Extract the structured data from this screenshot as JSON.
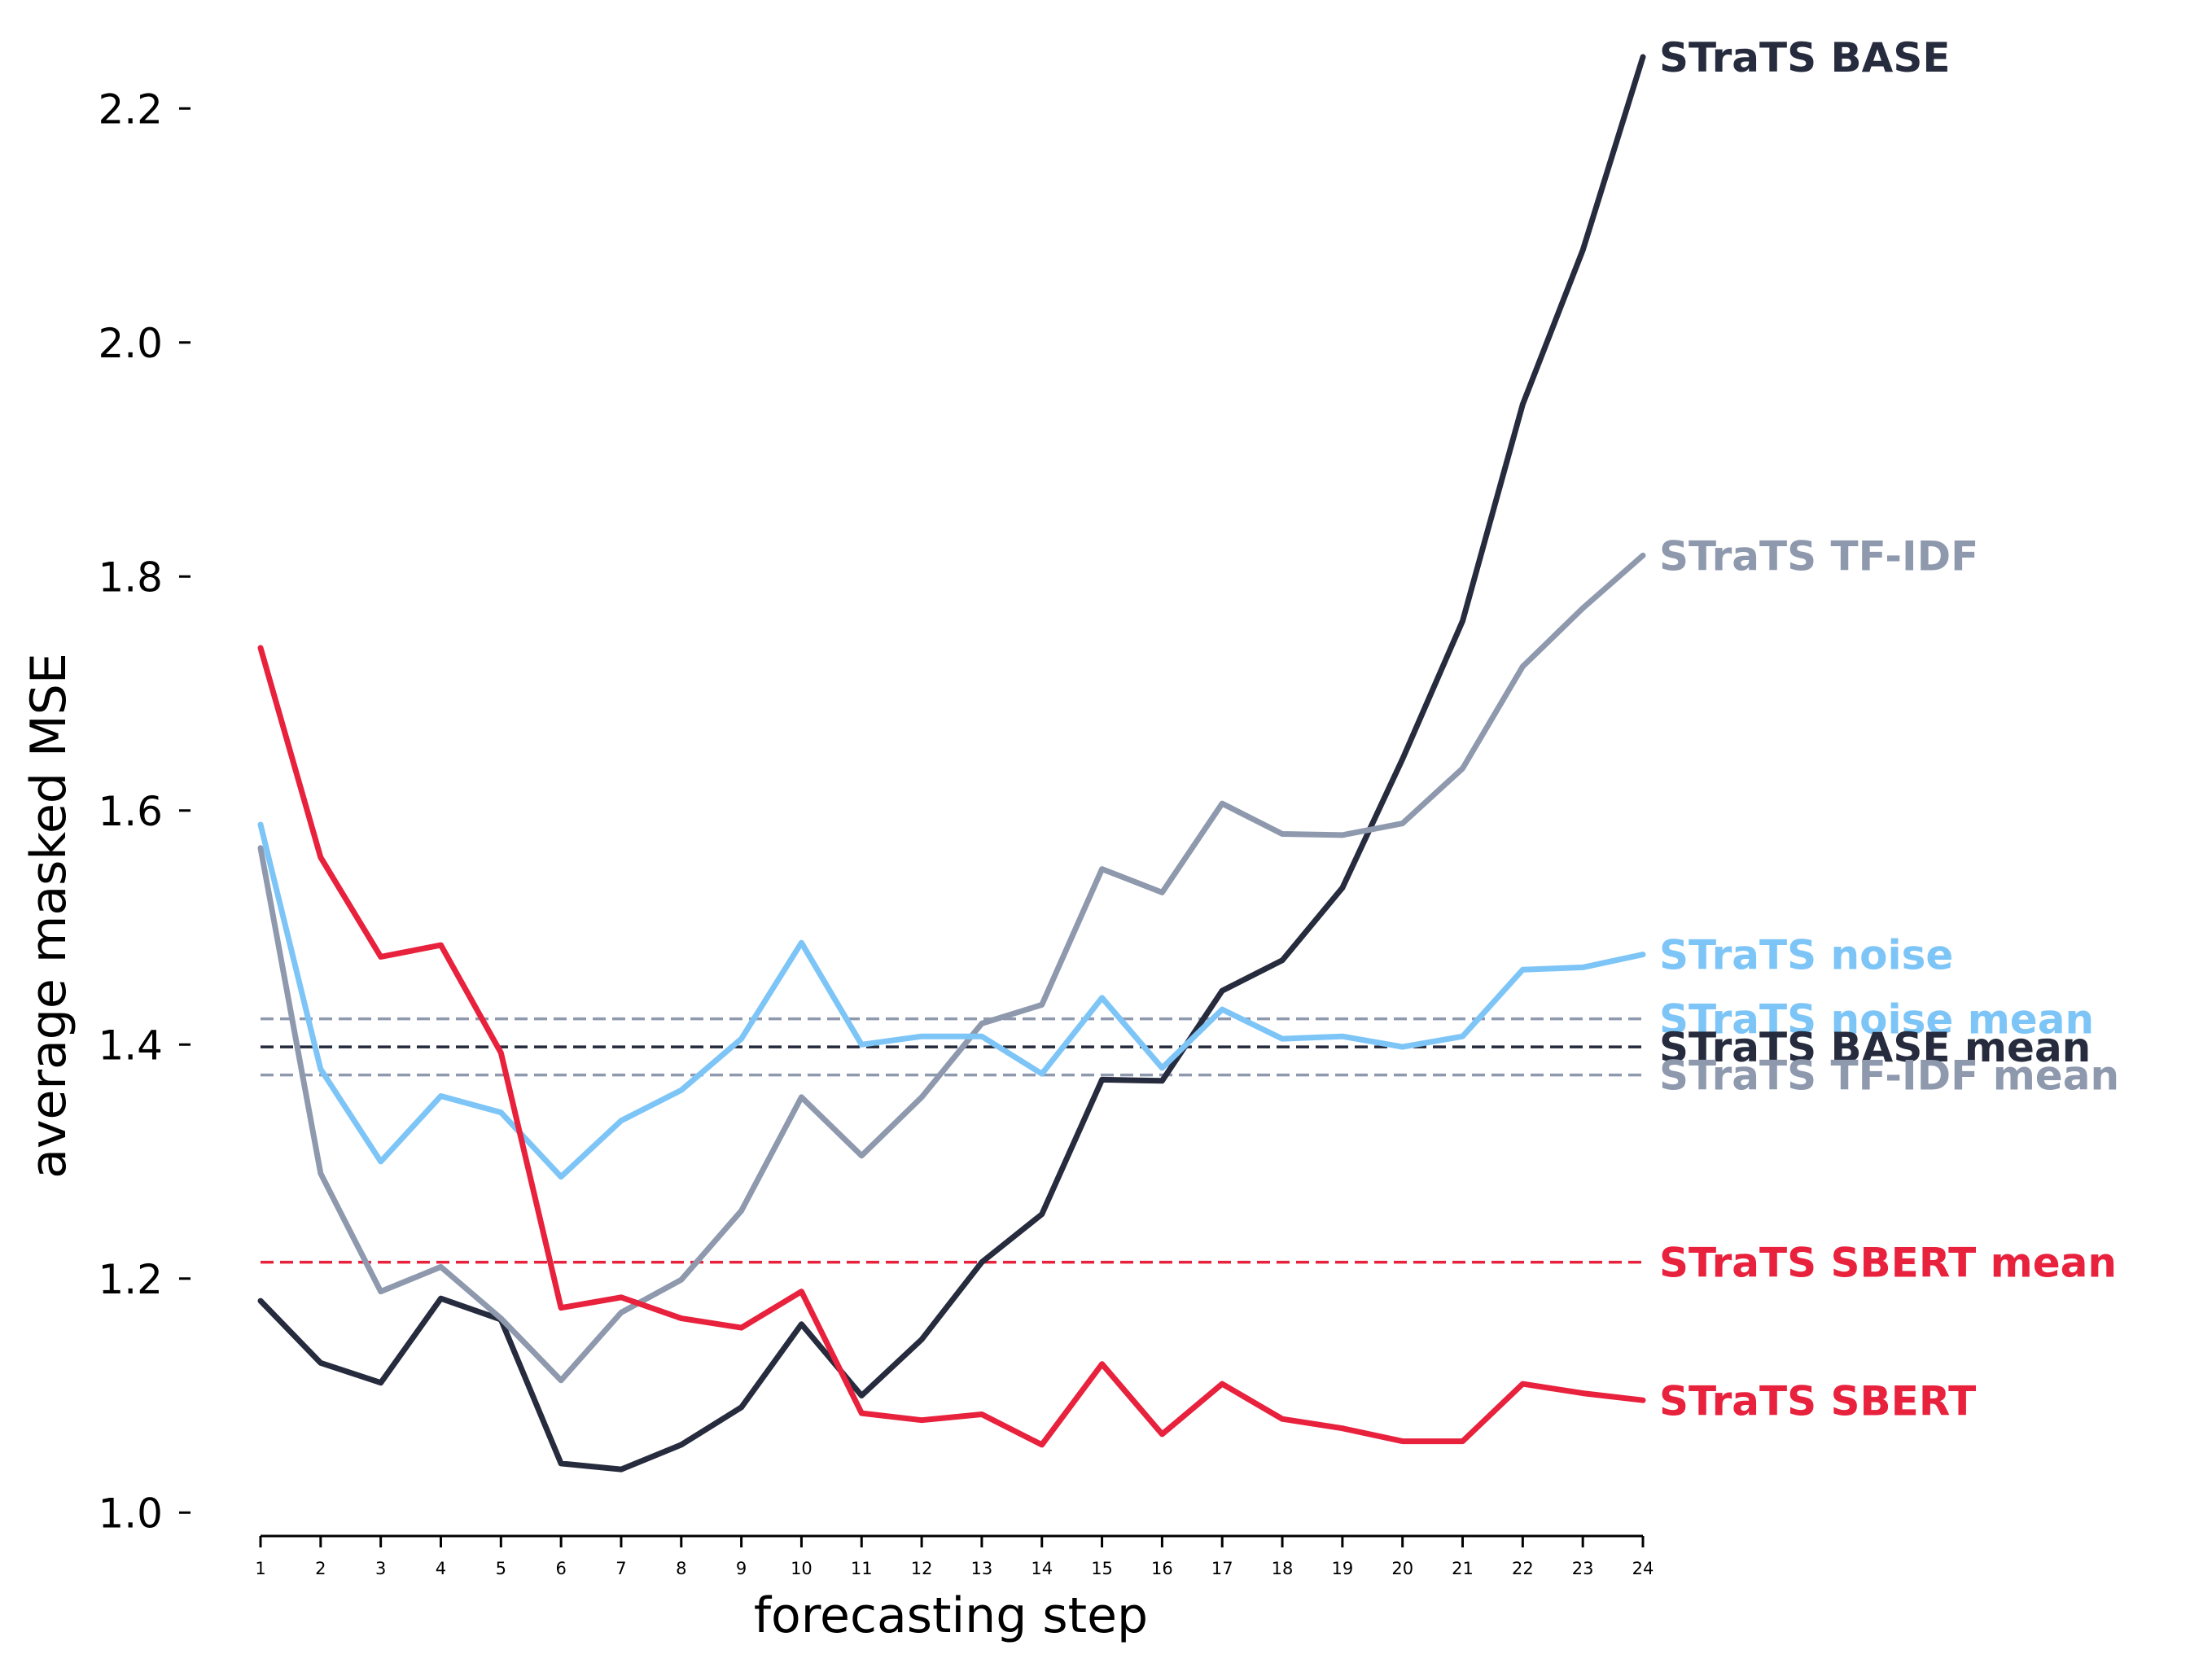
{
  "chart_data": {
    "type": "line",
    "title": "",
    "xlabel": "forecasting step",
    "ylabel": "average masked MSE",
    "x": [
      1,
      2,
      3,
      4,
      5,
      6,
      7,
      8,
      9,
      10,
      11,
      12,
      13,
      14,
      15,
      16,
      17,
      18,
      19,
      20,
      21,
      22,
      23,
      24
    ],
    "x_ticks": [
      "1",
      "2",
      "3",
      "4",
      "5",
      "6",
      "7",
      "8",
      "9",
      "10",
      "11",
      "12",
      "13",
      "14",
      "15",
      "16",
      "17",
      "18",
      "19",
      "20",
      "21",
      "22",
      "23",
      "24"
    ],
    "y_ticks": [
      "1.0",
      "1.2",
      "1.4",
      "1.6",
      "1.8",
      "2.0",
      "2.2"
    ],
    "ylim": [
      0.98,
      2.26
    ],
    "xlim": [
      1,
      24
    ],
    "grid": false,
    "series": [
      {
        "name": "STraTS BASE",
        "color": "#262b3d",
        "values": [
          1.181,
          1.128,
          1.111,
          1.183,
          1.165,
          1.042,
          1.037,
          1.058,
          1.09,
          1.161,
          1.1,
          1.148,
          1.214,
          1.255,
          1.37,
          1.369,
          1.446,
          1.472,
          1.534,
          1.644,
          1.762,
          1.947,
          2.079,
          2.244
        ]
      },
      {
        "name": "STraTS TF-IDF",
        "color": "#8e99ae",
        "values": [
          1.568,
          1.29,
          1.189,
          1.21,
          1.166,
          1.113,
          1.171,
          1.199,
          1.258,
          1.355,
          1.305,
          1.355,
          1.418,
          1.434,
          1.55,
          1.53,
          1.606,
          1.58,
          1.579,
          1.589,
          1.636,
          1.723,
          1.773,
          1.818
        ]
      },
      {
        "name": "STraTS noise",
        "color": "#7dc5f7",
        "values": [
          1.588,
          1.379,
          1.3,
          1.356,
          1.342,
          1.287,
          1.335,
          1.361,
          1.405,
          1.487,
          1.4,
          1.407,
          1.407,
          1.375,
          1.44,
          1.38,
          1.43,
          1.405,
          1.407,
          1.398,
          1.407,
          1.464,
          1.466,
          1.477
        ]
      },
      {
        "name": "STraTS SBERT",
        "color": "#e8213d",
        "values": [
          1.739,
          1.56,
          1.475,
          1.485,
          1.393,
          1.175,
          1.184,
          1.166,
          1.158,
          1.189,
          1.085,
          1.079,
          1.084,
          1.058,
          1.127,
          1.067,
          1.11,
          1.08,
          1.072,
          1.061,
          1.061,
          1.11,
          1.102,
          1.096
        ]
      }
    ],
    "mean_lines": [
      {
        "name": "STraTS noise mean",
        "value": 1.422,
        "color": "#8e99ae",
        "label_color": "#7dc5f7"
      },
      {
        "name": "STraTS BASE mean",
        "value": 1.398,
        "color": "#262b3d",
        "label_color": "#262b3d"
      },
      {
        "name": "STraTS TF-IDF mean",
        "value": 1.374,
        "color": "#8e99ae",
        "label_color": "#8e99ae"
      },
      {
        "name": "STraTS SBERT mean",
        "value": 1.214,
        "color": "#e8213d",
        "label_color": "#e8213d"
      }
    ]
  }
}
